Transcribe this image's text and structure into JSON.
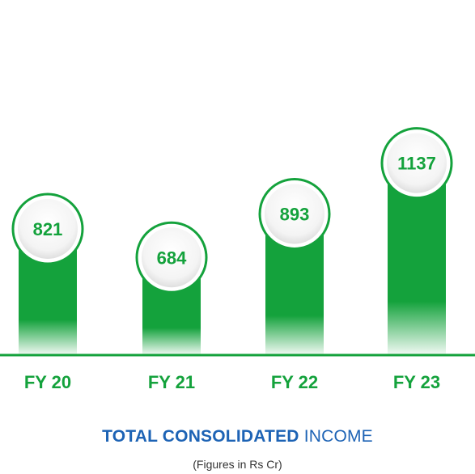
{
  "chart_data": {
    "type": "bar",
    "categories": [
      "FY 20",
      "FY 21",
      "FY 22",
      "FY 23"
    ],
    "values": [
      821,
      684,
      893,
      1137
    ],
    "title_bold": "TOTAL CONSOLIDATED",
    "title_light": "INCOME",
    "subtitle": "(Figures in Rs Cr)",
    "xlabel": "",
    "ylabel": "",
    "grid": false,
    "colors": {
      "bar": "#14a23c",
      "label": "#14a23c",
      "title": "#1d63b5",
      "baseline": "#14a23c"
    }
  }
}
